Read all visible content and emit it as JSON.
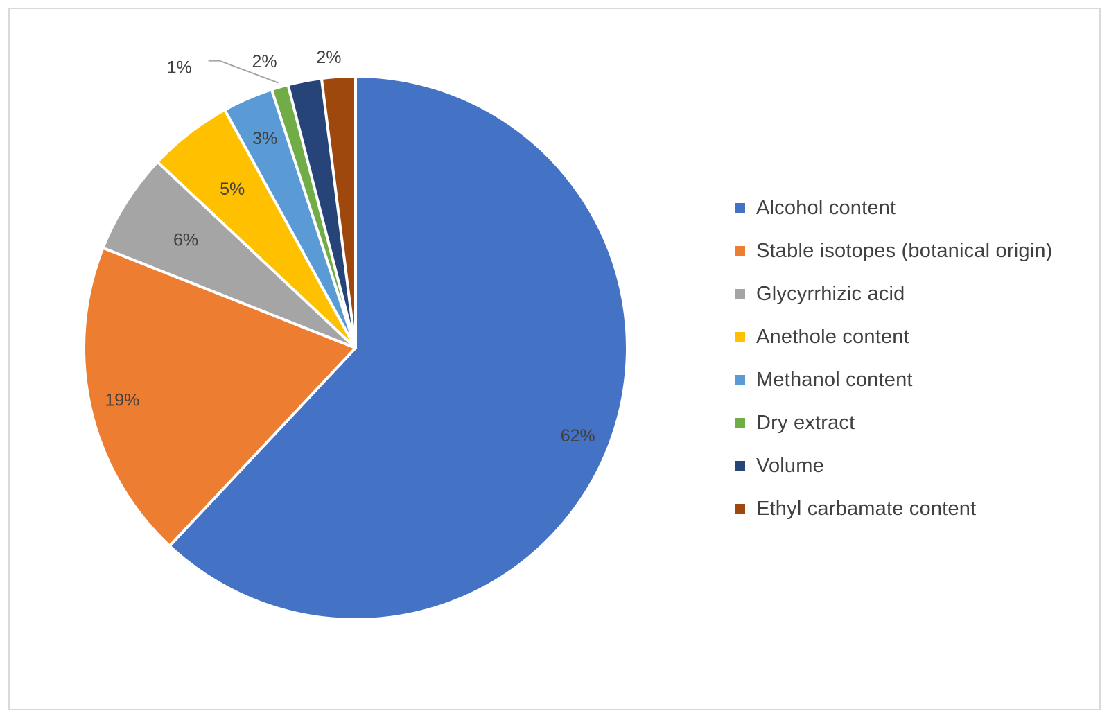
{
  "chart_data": {
    "type": "pie",
    "title": "",
    "legend_position": "right",
    "categories": [
      "Alcohol content",
      "Stable isotopes (botanical origin)",
      "Glycyrrhizic acid",
      "Anethole content",
      "Methanol content",
      "Dry extract",
      "Volume",
      "Ethyl carbamate content"
    ],
    "values": [
      62,
      19,
      6,
      5,
      3,
      1,
      2,
      2
    ],
    "data_labels": [
      "62%",
      "19%",
      "6%",
      "5%",
      "3%",
      "1%",
      "2%",
      "2%"
    ],
    "colors": [
      "#4472C4",
      "#ED7D31",
      "#A5A5A5",
      "#FFC000",
      "#5B9BD5",
      "#70AD47",
      "#264478",
      "#9E480E"
    ]
  }
}
